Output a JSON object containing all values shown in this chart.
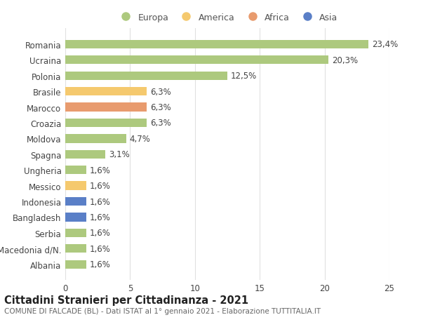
{
  "categories": [
    "Romania",
    "Ucraina",
    "Polonia",
    "Brasile",
    "Marocco",
    "Croazia",
    "Moldova",
    "Spagna",
    "Ungheria",
    "Messico",
    "Indonesia",
    "Bangladesh",
    "Serbia",
    "Macedonia d/N.",
    "Albania"
  ],
  "values": [
    23.4,
    20.3,
    12.5,
    6.3,
    6.3,
    6.3,
    4.7,
    3.1,
    1.6,
    1.6,
    1.6,
    1.6,
    1.6,
    1.6,
    1.6
  ],
  "labels": [
    "23,4%",
    "20,3%",
    "12,5%",
    "6,3%",
    "6,3%",
    "6,3%",
    "4,7%",
    "3,1%",
    "1,6%",
    "1,6%",
    "1,6%",
    "1,6%",
    "1,6%",
    "1,6%",
    "1,6%"
  ],
  "colors": [
    "#adc97e",
    "#adc97e",
    "#adc97e",
    "#f5c96e",
    "#e89b6e",
    "#adc97e",
    "#adc97e",
    "#adc97e",
    "#adc97e",
    "#f5c96e",
    "#5a7fc7",
    "#5a7fc7",
    "#adc97e",
    "#adc97e",
    "#adc97e"
  ],
  "legend_labels": [
    "Europa",
    "America",
    "Africa",
    "Asia"
  ],
  "legend_colors": [
    "#adc97e",
    "#f5c96e",
    "#e89b6e",
    "#5a7fc7"
  ],
  "title": "Cittadini Stranieri per Cittadinanza - 2021",
  "subtitle": "COMUNE DI FALCADE (BL) - Dati ISTAT al 1° gennaio 2021 - Elaborazione TUTTITALIA.IT",
  "xlim": [
    0,
    25
  ],
  "xticks": [
    0,
    5,
    10,
    15,
    20,
    25
  ],
  "background_color": "#ffffff",
  "grid_color": "#e0e0e0",
  "bar_height": 0.55,
  "label_fontsize": 8.5,
  "tick_fontsize": 8.5,
  "title_fontsize": 10.5,
  "subtitle_fontsize": 7.5
}
